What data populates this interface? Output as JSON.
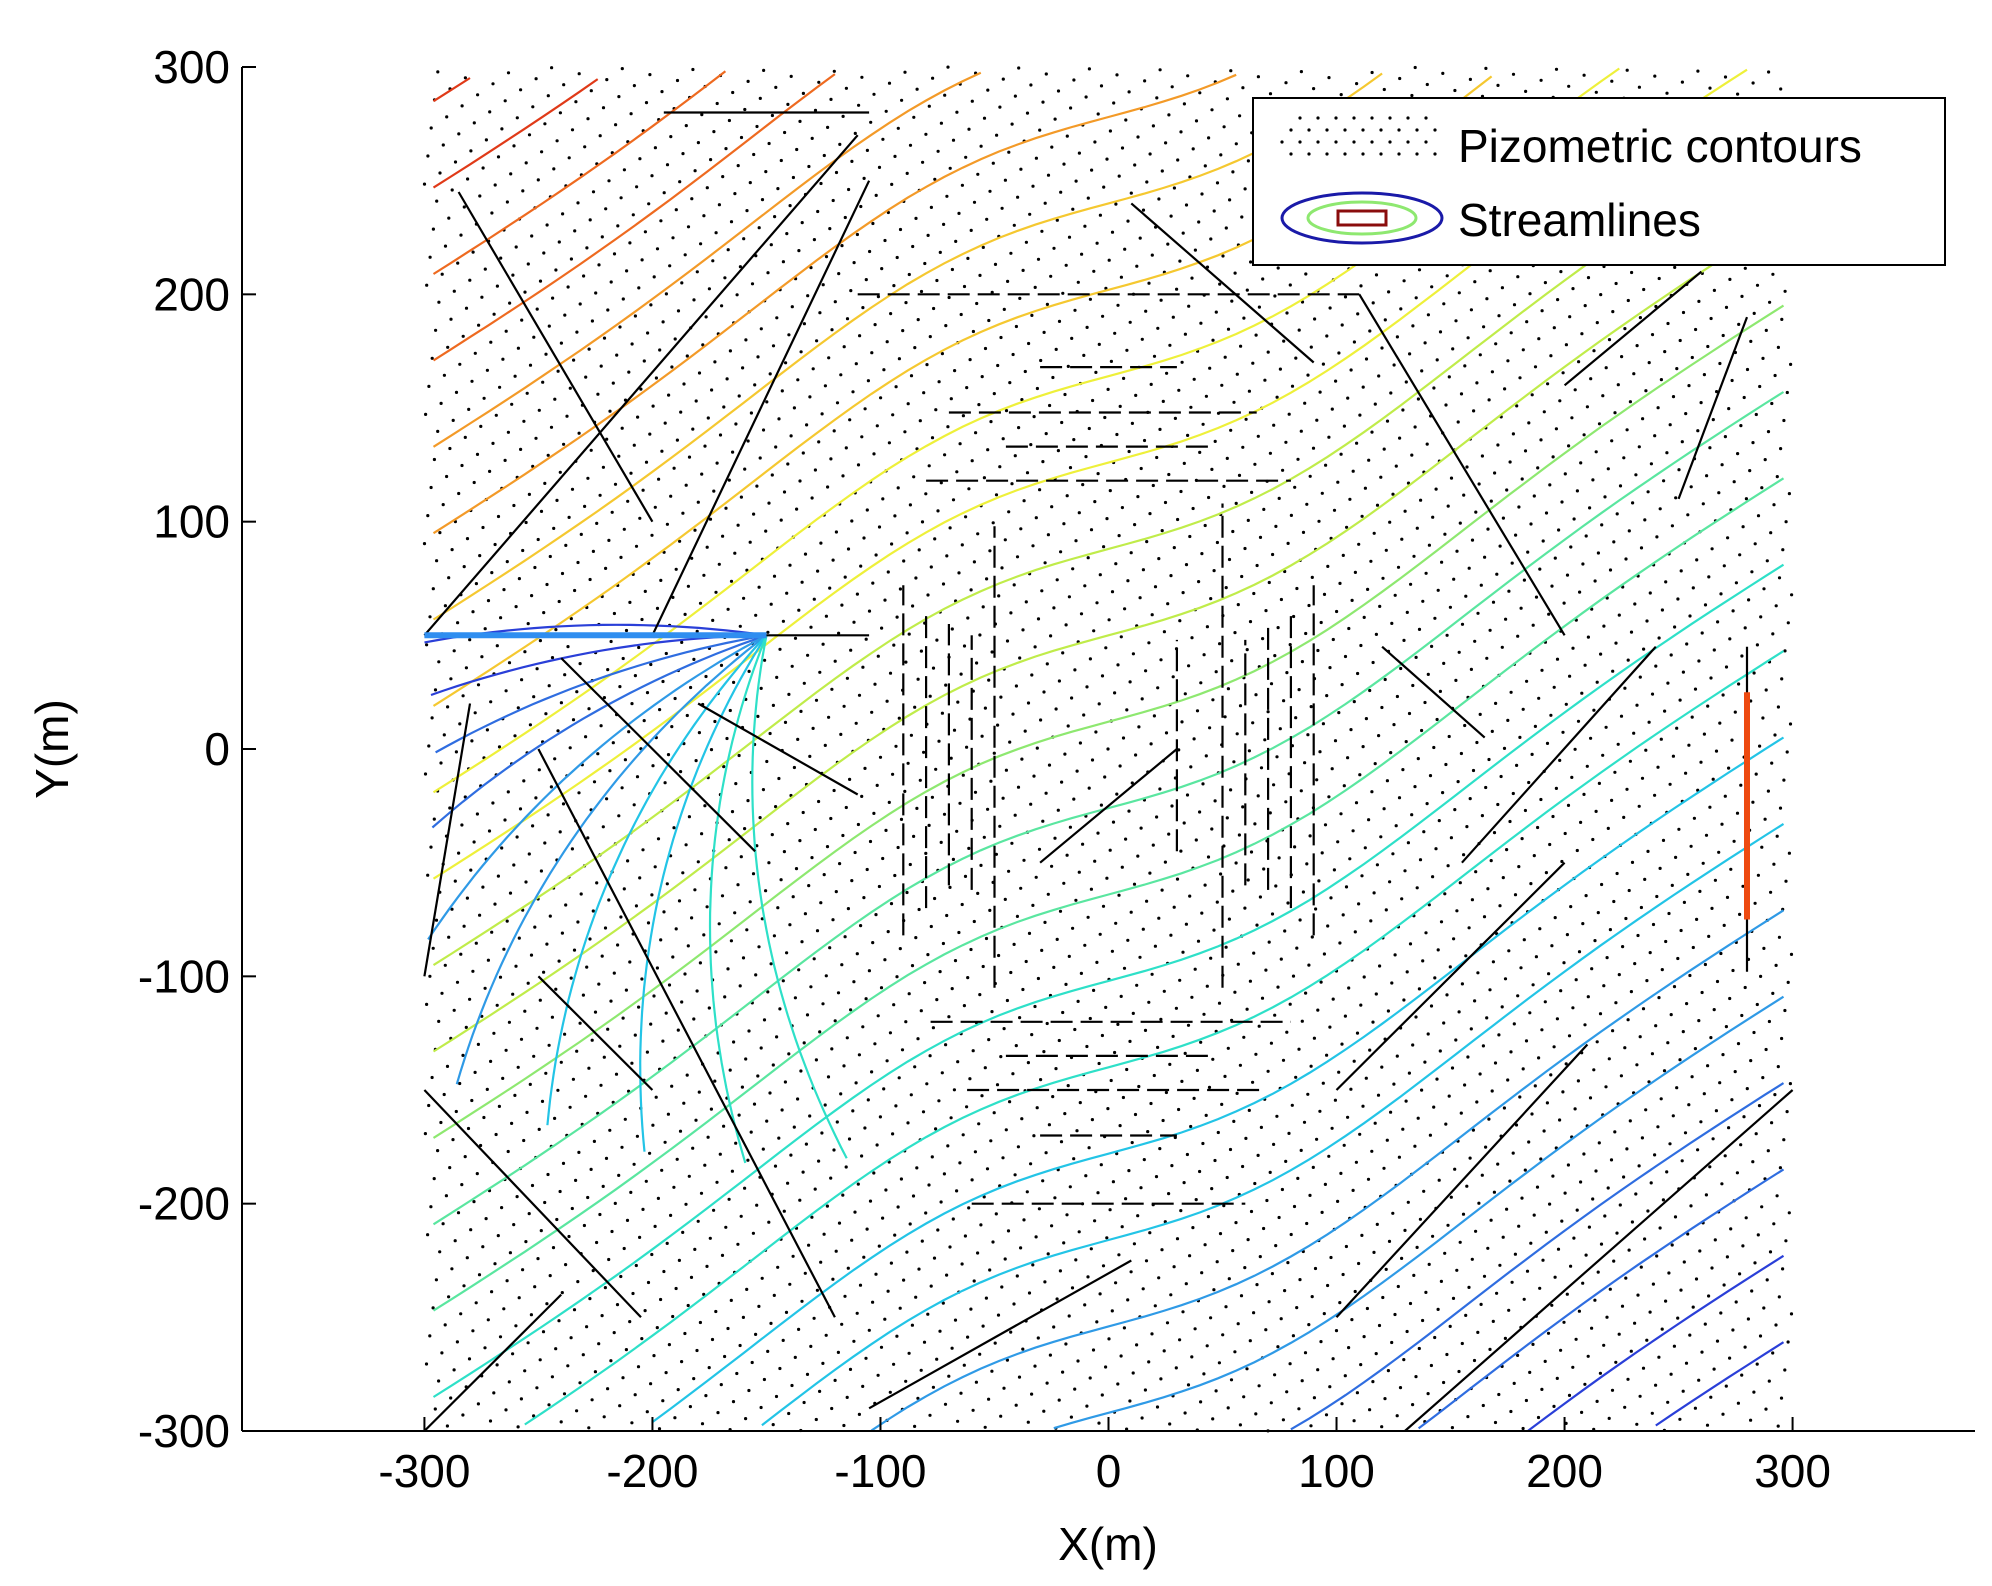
{
  "chart_data": {
    "type": "line",
    "xlabel": "X(m)",
    "ylabel": "Y(m)",
    "xlim": [
      -380,
      380
    ],
    "ylim": [
      -300,
      300
    ],
    "x_ticks": [
      -300,
      -200,
      -100,
      0,
      100,
      200,
      300
    ],
    "y_ticks": [
      -300,
      -200,
      -100,
      0,
      100,
      200,
      300
    ],
    "x_tick_labels": [
      "-300",
      "-200",
      "-100",
      "0",
      "100",
      "200",
      "300"
    ],
    "y_tick_labels": [
      "-300",
      "-200",
      "-100",
      "0",
      "100",
      "200",
      "300"
    ],
    "grid": false,
    "legend": {
      "position": "top-right",
      "entries": [
        {
          "label": "Pizometric contours",
          "style": "dotted-black"
        },
        {
          "label": "Streamlines",
          "style": "colored-contour"
        }
      ]
    },
    "colormap": "jet",
    "streamline_colors": [
      "#1a1aa8",
      "#2a3fd8",
      "#2f6de0",
      "#2f9ae6",
      "#23c4e6",
      "#2ee0c8",
      "#5ae6a0",
      "#8ee870",
      "#c0ec4a",
      "#eef03a",
      "#f5c830",
      "#f39a28",
      "#ee6a20",
      "#e03a18",
      "#c01a12",
      "#8a0c0c"
    ],
    "highlight_segments": [
      {
        "label": "well line",
        "x": [
          -300,
          -150
        ],
        "y": [
          50,
          50
        ],
        "color": "#2f8ef0"
      },
      {
        "label": "boundary",
        "x": [
          280,
          280
        ],
        "y": [
          -75,
          25
        ],
        "color": "#ee4a10"
      }
    ],
    "fractures": [
      {
        "x": [
          -300,
          -105
        ],
        "y": [
          50,
          50
        ]
      },
      {
        "x": [
          -195,
          -105
        ],
        "y": [
          280,
          280
        ]
      },
      {
        "x": [
          -110,
          110
        ],
        "y": [
          200,
          200
        ]
      },
      {
        "x": [
          -30,
          30
        ],
        "y": [
          168,
          168
        ]
      },
      {
        "x": [
          -70,
          65
        ],
        "y": [
          148,
          148
        ]
      },
      {
        "x": [
          -45,
          45
        ],
        "y": [
          133,
          133
        ]
      },
      {
        "x": [
          -80,
          80
        ],
        "y": [
          118,
          118
        ]
      },
      {
        "x": [
          -78,
          80
        ],
        "y": [
          -120,
          -120
        ]
      },
      {
        "x": [
          -45,
          45
        ],
        "y": [
          -135,
          -135
        ]
      },
      {
        "x": [
          -62,
          68
        ],
        "y": [
          -150,
          -150
        ]
      },
      {
        "x": [
          -30,
          30
        ],
        "y": [
          -170,
          -170
        ]
      },
      {
        "x": [
          -60,
          60
        ],
        "y": [
          -200,
          -200
        ]
      },
      {
        "x": [
          -90,
          -90
        ],
        "y": [
          -82,
          72
        ]
      },
      {
        "x": [
          -80,
          -80
        ],
        "y": [
          -70,
          62
        ]
      },
      {
        "x": [
          -70,
          -70
        ],
        "y": [
          -60,
          55
        ]
      },
      {
        "x": [
          -60,
          -60
        ],
        "y": [
          -62,
          50
        ]
      },
      {
        "x": [
          -50,
          -50
        ],
        "y": [
          -105,
          98
        ]
      },
      {
        "x": [
          30,
          30
        ],
        "y": [
          -45,
          48
        ]
      },
      {
        "x": [
          50,
          50
        ],
        "y": [
          -105,
          108
        ]
      },
      {
        "x": [
          60,
          60
        ],
        "y": [
          -60,
          48
        ]
      },
      {
        "x": [
          70,
          70
        ],
        "y": [
          -62,
          55
        ]
      },
      {
        "x": [
          80,
          80
        ],
        "y": [
          -70,
          60
        ]
      },
      {
        "x": [
          90,
          90
        ],
        "y": [
          -82,
          72
        ]
      },
      {
        "x": [
          280,
          280
        ],
        "y": [
          -98,
          45
        ]
      },
      {
        "x": [
          -300,
          -240
        ],
        "y": [
          -300,
          -240
        ]
      },
      {
        "x": [
          -300,
          -205
        ],
        "y": [
          -150,
          -250
        ]
      },
      {
        "x": [
          -250,
          -120
        ],
        "y": [
          0,
          -250
        ]
      },
      {
        "x": [
          -250,
          -200
        ],
        "y": [
          -100,
          -150
        ]
      },
      {
        "x": [
          -300,
          -110
        ],
        "y": [
          50,
          270
        ]
      },
      {
        "x": [
          -285,
          -200
        ],
        "y": [
          245,
          100
        ]
      },
      {
        "x": [
          -200,
          -105
        ],
        "y": [
          50,
          250
        ]
      },
      {
        "x": [
          -240,
          -155
        ],
        "y": [
          40,
          -45
        ]
      },
      {
        "x": [
          -180,
          -110
        ],
        "y": [
          20,
          -20
        ]
      },
      {
        "x": [
          -300,
          -280
        ],
        "y": [
          -100,
          20
        ]
      },
      {
        "x": [
          -105,
          10
        ],
        "y": [
          -290,
          -225
        ]
      },
      {
        "x": [
          -30,
          30
        ],
        "y": [
          -50,
          0
        ]
      },
      {
        "x": [
          10,
          90
        ],
        "y": [
          240,
          170
        ]
      },
      {
        "x": [
          110,
          200
        ],
        "y": [
          200,
          50
        ]
      },
      {
        "x": [
          120,
          165
        ],
        "y": [
          45,
          5
        ]
      },
      {
        "x": [
          155,
          240
        ],
        "y": [
          -50,
          45
        ]
      },
      {
        "x": [
          100,
          200
        ],
        "y": [
          -150,
          -50
        ]
      },
      {
        "x": [
          100,
          210
        ],
        "y": [
          -250,
          -130
        ]
      },
      {
        "x": [
          130,
          300
        ],
        "y": [
          -300,
          -150
        ]
      },
      {
        "x": [
          250,
          280
        ],
        "y": [
          110,
          190
        ]
      },
      {
        "x": [
          200,
          260
        ],
        "y": [
          160,
          210
        ]
      }
    ]
  }
}
